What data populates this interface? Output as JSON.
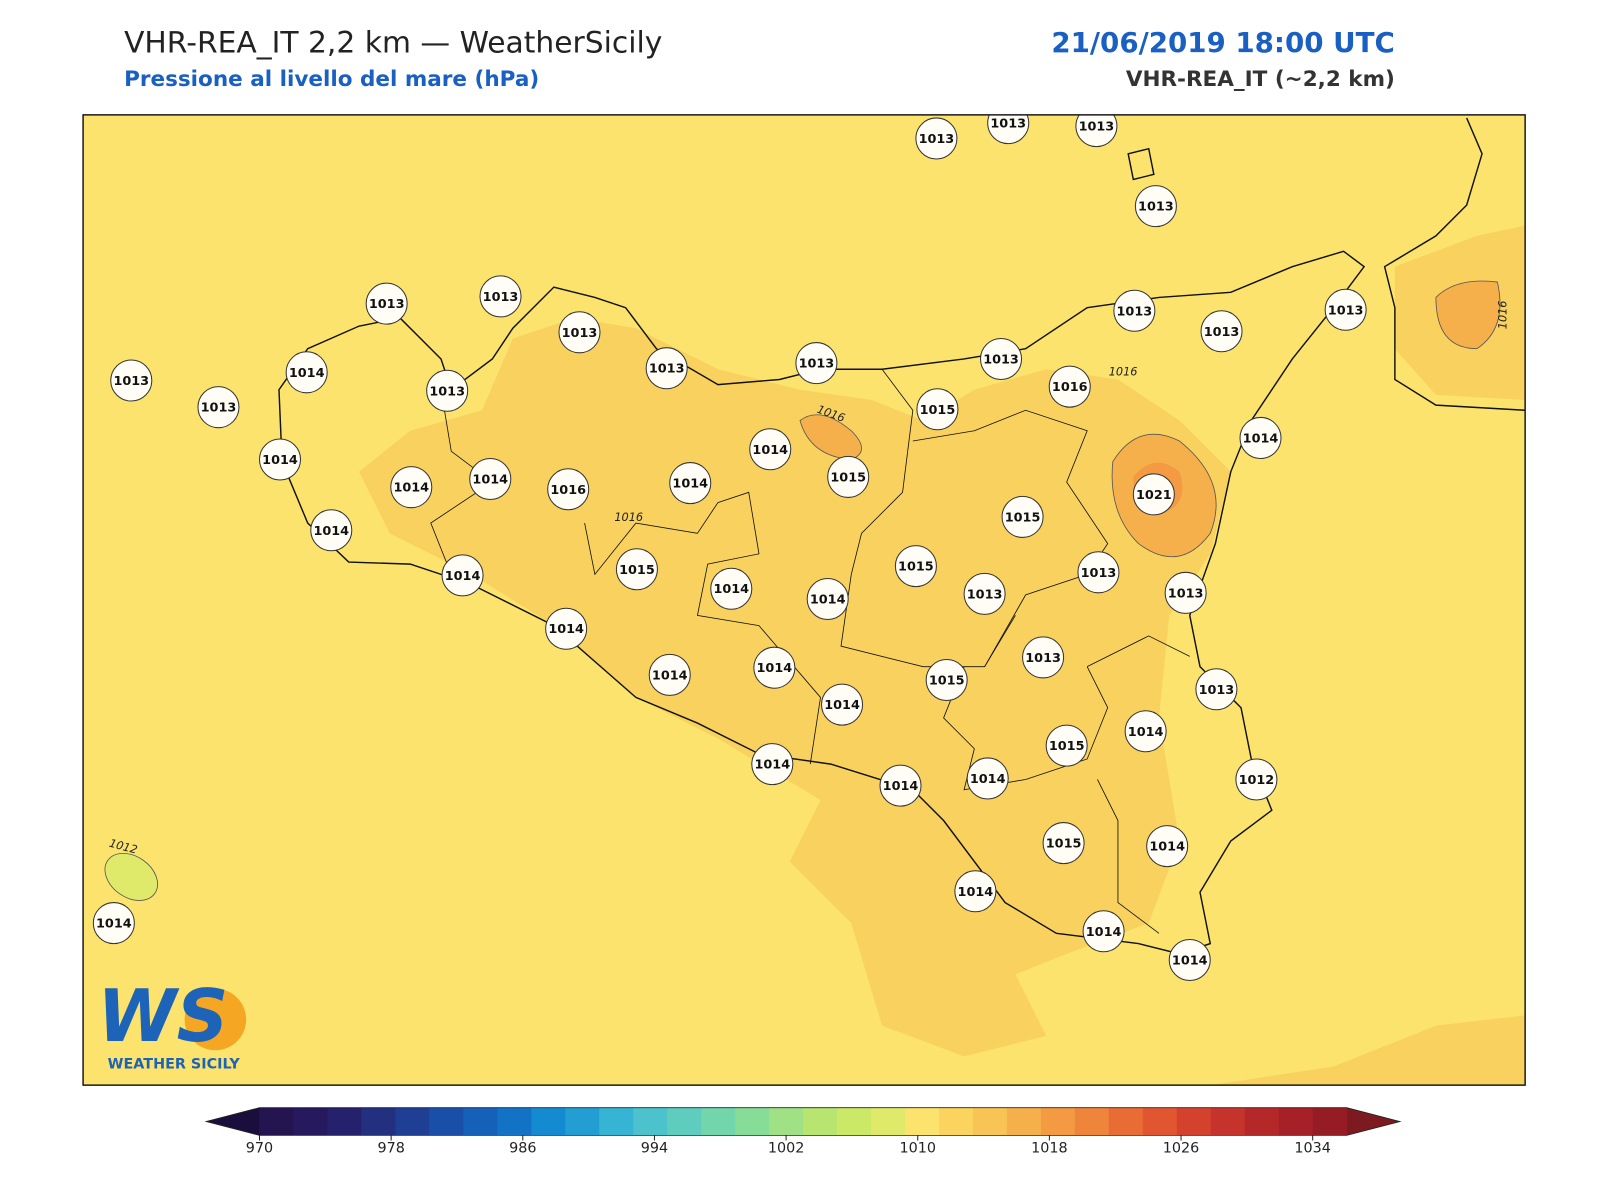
{
  "header": {
    "title": "VHR-REA_IT 2,2 km — WeatherSicily",
    "subtitle": "Pressione al livello del mare (hPa)",
    "datetime": "21/06/2019 18:00 UTC",
    "model": "VHR-REA_IT (~2,2 km)"
  },
  "map": {
    "background_color": "#fbe36e",
    "stations": [
      1013,
      1013,
      1013,
      1013,
      1013,
      1013,
      1013,
      1013,
      1013,
      1013,
      1013,
      1013,
      1013,
      1013,
      1013,
      1014,
      1013,
      1014,
      1014,
      1014,
      1016,
      1014,
      1014,
      1015,
      1015,
      1016,
      1014,
      1021,
      1014,
      1014,
      1015,
      1014,
      1014,
      1015,
      1015,
      1013,
      1013,
      1013,
      1014,
      1014,
      1014,
      1014,
      1015,
      1013,
      1013,
      1014,
      1015,
      1012,
      1014,
      1014,
      1014,
      1015,
      1014,
      1014,
      1014,
      1014,
      1014
    ],
    "contour_labels": [
      1016,
      1016,
      1016,
      1016,
      1012
    ]
  },
  "colorbar": {
    "range": [
      970,
      1034
    ],
    "ticks": [
      970,
      978,
      986,
      994,
      1002,
      1010,
      1018,
      1026,
      1034
    ],
    "colors": [
      "#241551",
      "#26195e",
      "#25216d",
      "#233080",
      "#1f3f95",
      "#1a4fa8",
      "#1560b8",
      "#1273c6",
      "#148ad0",
      "#239ed3",
      "#36b4d4",
      "#4bc2cc",
      "#5ecdbe",
      "#72d5ac",
      "#87dc98",
      "#9fe184",
      "#b7e56f",
      "#cce867",
      "#dfe96a",
      "#fbe36e",
      "#fad45f",
      "#f8c456",
      "#f6b04b",
      "#f39a42",
      "#ef843b",
      "#ea6c35",
      "#e15631",
      "#d4422e",
      "#c5332c",
      "#b5282a",
      "#a52027",
      "#951b25"
    ],
    "under_color": "#1a0f3c",
    "over_color": "#7d1a20"
  },
  "logo": {
    "mark": "WS",
    "name": "WEATHER SICILY"
  }
}
